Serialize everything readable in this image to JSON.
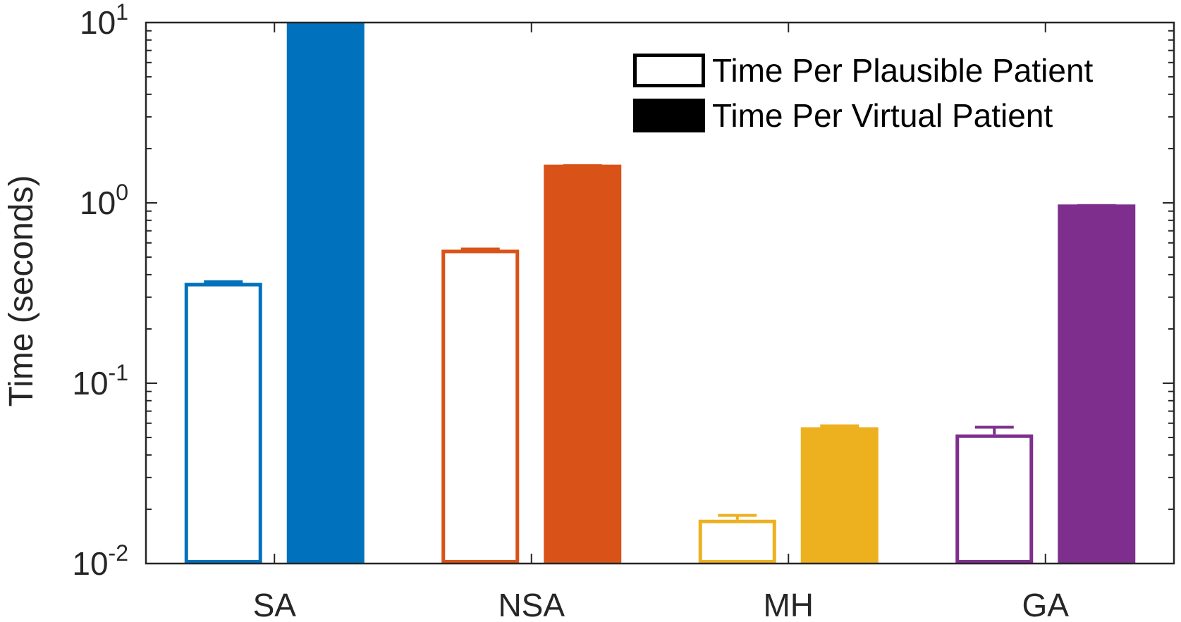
{
  "chart_data": {
    "type": "bar",
    "categories": [
      "SA",
      "NSA",
      "MH",
      "GA"
    ],
    "ylabel": "Time (seconds)",
    "yscale": "log",
    "ylim": [
      0.01,
      10
    ],
    "yticks": [
      {
        "value": 0.01,
        "base": "10",
        "exp": "-2"
      },
      {
        "value": 0.1,
        "base": "10",
        "exp": "-1"
      },
      {
        "value": 1,
        "base": "10",
        "exp": "0"
      },
      {
        "value": 10,
        "base": "10",
        "exp": "1"
      }
    ],
    "grid": false,
    "legend_position": "top-right",
    "series": [
      {
        "name": "Time Per Plausible Patient",
        "style": "outline",
        "values": [
          0.36,
          0.55,
          0.0175,
          0.052
        ],
        "error_upper": [
          0.365,
          0.555,
          0.0185,
          0.057
        ]
      },
      {
        "name": "Time Per Virtual Patient",
        "style": "filled",
        "values": [
          10,
          1.63,
          0.057,
          0.98
        ],
        "error_upper": [
          10,
          1.64,
          0.058,
          0.985
        ]
      }
    ],
    "category_colors": [
      "#0072BD",
      "#D95319",
      "#EDB120",
      "#7E2F8E"
    ]
  }
}
